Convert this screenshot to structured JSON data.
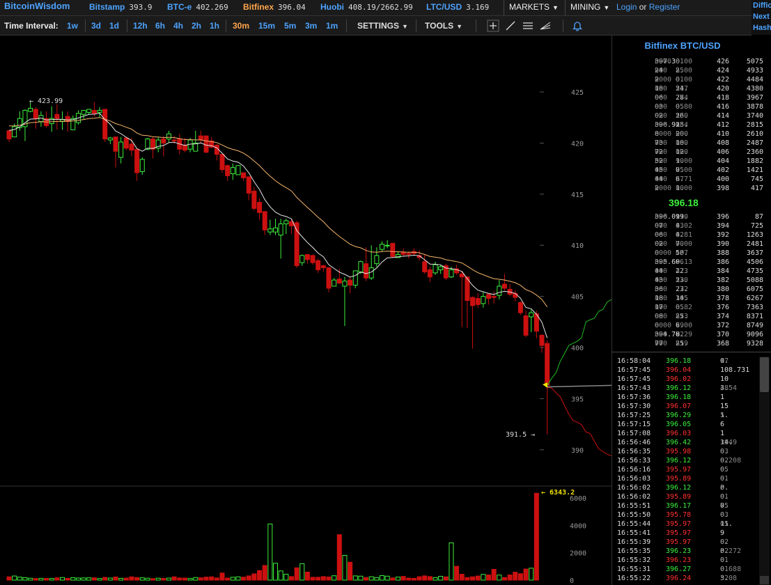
{
  "brand": "BitcoinWisdom",
  "markets": [
    {
      "name": "Bitstamp",
      "price": "393.9",
      "active": false
    },
    {
      "name": "BTC-e",
      "price": "402.269",
      "active": false
    },
    {
      "name": "Bitfinex",
      "price": "396.04",
      "active": true
    },
    {
      "name": "Huobi",
      "price": "408.19/2662.99",
      "active": false
    },
    {
      "name": "LTC/USD",
      "price": "3.169",
      "active": false
    }
  ],
  "menus": {
    "markets": "MARKETS",
    "mining": "MINING"
  },
  "auth": {
    "login": "Login",
    "or": "or",
    "register": "Register"
  },
  "right_links": [
    "Diffic",
    "Next",
    "Hash"
  ],
  "toolbar": {
    "time_interval_label": "Time Interval:",
    "intervals_long": [
      "1w",
      "3d",
      "1d"
    ],
    "intervals_hour": [
      "12h",
      "6h",
      "4h",
      "2h",
      "1h"
    ],
    "intervals_min": [
      "30m",
      "15m",
      "5m",
      "3m",
      "1m"
    ],
    "active_interval": "30m",
    "settings": "SETTINGS",
    "tools": "TOOLS"
  },
  "icons": [
    "crosshair-icon",
    "line-tool-icon",
    "horizontal-lines-icon",
    "fib-tool-icon",
    "bell-icon"
  ],
  "colors": {
    "up": "#3cf03c",
    "down": "#cc1010",
    "brand": "#4da3ff",
    "active": "#ffa64d"
  },
  "chart_data": {
    "type": "candlestick",
    "y_ticks": [
      "425",
      "420",
      "415",
      "410",
      "405",
      "400",
      "395",
      "390"
    ],
    "ylim": [
      388.5,
      429.5
    ],
    "high_label": "423.99",
    "low_label": "391.5",
    "volume_ticks": [
      "6000",
      "4000",
      "2000",
      "0"
    ],
    "volume_peak_label": "6343.2",
    "candles": [
      [
        421.2,
        420.4,
        421.3,
        420.1
      ],
      [
        420.6,
        421.6,
        421.9,
        420.6
      ],
      [
        421.5,
        422.4,
        423.1,
        421.2
      ],
      [
        421.6,
        423.2,
        423.3,
        420.2
      ],
      [
        423.1,
        423.4,
        424.0,
        423.0
      ],
      [
        423.3,
        422.4,
        423.5,
        421.4
      ],
      [
        422.1,
        422.7,
        423.1,
        421.6
      ],
      [
        422.4,
        421.7,
        423.1,
        421.5
      ],
      [
        421.9,
        422.4,
        423.6,
        421.1
      ],
      [
        422.8,
        422.4,
        423.8,
        421.3
      ],
      [
        422.1,
        422.3,
        423.1,
        421.3
      ],
      [
        422.6,
        422.1,
        423.1,
        421.1
      ],
      [
        421.3,
        422.4,
        422.7,
        421.4
      ],
      [
        422.0,
        422.9,
        423.2,
        421.8
      ],
      [
        422.8,
        423.2,
        423.2,
        422.3
      ],
      [
        423.0,
        423.3,
        423.3,
        422.8
      ],
      [
        423.2,
        422.9,
        424.0,
        422.6
      ],
      [
        423.0,
        423.2,
        423.5,
        422.5
      ],
      [
        423.3,
        420.4,
        423.3,
        420.1
      ],
      [
        420.3,
        420.5,
        420.6,
        419.9
      ],
      [
        420.6,
        419.2,
        420.6,
        417.6
      ],
      [
        418.6,
        420.1,
        420.6,
        418.0
      ],
      [
        420.5,
        419.5,
        420.5,
        419.3
      ],
      [
        419.9,
        419.3,
        420.5,
        418.7
      ],
      [
        419.4,
        417.1,
        419.4,
        416.3
      ],
      [
        417.2,
        418.4,
        418.6,
        416.9
      ],
      [
        419.4,
        420.4,
        420.5,
        419.3
      ],
      [
        420.4,
        419.4,
        420.6,
        418.5
      ],
      [
        419.5,
        420.3,
        420.6,
        419.1
      ],
      [
        420.4,
        420.0,
        420.7,
        418.7
      ],
      [
        420.4,
        420.9,
        421.2,
        420.1
      ],
      [
        420.3,
        420.2,
        420.7,
        419.9
      ],
      [
        420.4,
        419.4,
        420.9,
        418.9
      ],
      [
        419.8,
        419.3,
        420.5,
        419.1
      ],
      [
        419.4,
        420.3,
        420.5,
        419.1
      ],
      [
        419.2,
        420.0,
        421.2,
        419.2
      ],
      [
        420.7,
        420.3,
        421.2,
        420.0
      ],
      [
        420.7,
        419.1,
        420.7,
        419.0
      ],
      [
        420.2,
        419.6,
        420.6,
        419.5
      ],
      [
        419.8,
        418.9,
        419.9,
        418.3
      ],
      [
        418.9,
        417.4,
        419.0,
        417.1
      ],
      [
        417.8,
        416.8,
        417.9,
        416.3
      ],
      [
        417.0,
        417.6,
        418.0,
        416.4
      ],
      [
        416.9,
        417.8,
        417.8,
        416.9
      ],
      [
        417.1,
        416.6,
        417.1,
        416.3
      ],
      [
        416.7,
        415.1,
        416.7,
        414.4
      ],
      [
        415.3,
        413.6,
        415.7,
        413.4
      ],
      [
        414.2,
        413.2,
        414.6,
        412.5
      ],
      [
        413.3,
        411.5,
        413.3,
        411.0
      ],
      [
        411.3,
        411.6,
        412.5,
        411.0
      ],
      [
        411.3,
        411.7,
        412.6,
        411.0
      ],
      [
        411.0,
        412.1,
        412.6,
        408.7
      ],
      [
        412.1,
        412.4,
        412.6,
        411.1
      ],
      [
        412.3,
        411.9,
        412.6,
        411.1
      ],
      [
        412.2,
        408.0,
        412.4,
        407.8
      ],
      [
        408.3,
        409.0,
        409.1,
        408.0
      ],
      [
        409.1,
        408.6,
        409.1,
        408.2
      ],
      [
        409.0,
        408.3,
        409.1,
        408.1
      ],
      [
        408.5,
        407.6,
        408.7,
        407.3
      ],
      [
        408.0,
        407.8,
        408.1,
        407.4
      ],
      [
        407.8,
        405.8,
        407.8,
        405.4
      ],
      [
        406.0,
        406.6,
        406.8,
        406.0
      ],
      [
        406.7,
        406.3,
        407.7,
        406.2
      ],
      [
        406.0,
        406.5,
        406.9,
        402.1
      ],
      [
        406.6,
        406.1,
        406.9,
        405.3
      ],
      [
        406.1,
        407.5,
        407.5,
        405.8
      ],
      [
        407.4,
        408.4,
        408.5,
        407.2
      ],
      [
        408.2,
        406.8,
        409.8,
        406.5
      ],
      [
        406.8,
        407.8,
        410.0,
        406.6
      ],
      [
        408.2,
        409.0,
        409.8,
        407.9
      ],
      [
        409.6,
        410.1,
        410.4,
        409.4
      ],
      [
        410.0,
        410.0,
        410.5,
        409.7
      ],
      [
        410.2,
        408.9,
        410.2,
        408.8
      ],
      [
        408.8,
        409.1,
        409.4,
        408.9
      ],
      [
        409.3,
        409.1,
        409.7,
        408.9
      ],
      [
        409.2,
        409.1,
        409.4,
        408.7
      ],
      [
        409.4,
        409.2,
        409.7,
        409.0
      ],
      [
        409.0,
        408.8,
        409.5,
        408.5
      ],
      [
        408.4,
        407.4,
        409.1,
        407.2
      ],
      [
        407.6,
        406.9,
        407.9,
        406.4
      ],
      [
        407.3,
        408.1,
        408.4,
        407.1
      ],
      [
        407.6,
        407.9,
        408.1,
        407.2
      ],
      [
        408.0,
        406.8,
        408.2,
        406.6
      ],
      [
        406.9,
        407.6,
        407.9,
        406.8
      ],
      [
        407.7,
        407.3,
        408.1,
        407.1
      ],
      [
        407.2,
        406.9,
        407.5,
        402.0
      ],
      [
        406.9,
        404.6,
        407.0,
        401.9
      ],
      [
        404.9,
        404.1,
        405.0,
        399.9
      ],
      [
        404.8,
        404.2,
        405.3,
        403.9
      ],
      [
        404.3,
        405.0,
        405.4,
        403.9
      ],
      [
        405.2,
        404.8,
        405.3,
        404.2
      ],
      [
        405.0,
        404.9,
        405.5,
        404.3
      ],
      [
        405.1,
        406.0,
        406.6,
        404.7
      ],
      [
        406.2,
        405.8,
        407.2,
        405.6
      ],
      [
        405.7,
        405.2,
        406.2,
        405.0
      ],
      [
        405.3,
        404.9,
        405.6,
        404.5
      ],
      [
        404.4,
        403.4,
        404.5,
        403.2
      ],
      [
        403.1,
        401.2,
        403.6,
        401.0
      ],
      [
        403.0,
        403.4,
        403.7,
        401.5
      ],
      [
        403.3,
        401.6,
        403.6,
        400.9
      ],
      [
        401.2,
        400.2,
        401.3,
        399.5
      ],
      [
        400.4,
        396.3,
        400.7,
        391.5
      ]
    ],
    "volumes": [
      240,
      300,
      220,
      180,
      140,
      120,
      130,
      130,
      120,
      170,
      190,
      130,
      180,
      150,
      160,
      170,
      170,
      120,
      200,
      150,
      230,
      130,
      150,
      240,
      190,
      170,
      140,
      110,
      140,
      130,
      150,
      240,
      160,
      150,
      120,
      190,
      170,
      220,
      240,
      160,
      520,
      150,
      210,
      240,
      220,
      310,
      460,
      700,
      1070,
      4100,
      1230,
      670,
      430,
      260,
      900,
      1200,
      590,
      210,
      210,
      260,
      230,
      320,
      3320,
      1810,
      1310,
      310,
      290,
      190,
      250,
      190,
      330,
      290,
      160,
      220,
      270,
      150,
      130,
      250,
      310,
      260,
      180,
      280,
      240,
      2720,
      1010,
      430,
      190,
      240,
      300,
      420,
      380,
      790,
      370,
      190,
      380,
      580,
      470,
      810,
      870,
      6343
    ]
  },
  "order_book": {
    "title": "Bitfinex BTC/USD",
    "asks": [
      {
        "hi": "397.3",
        "lo": "0000",
        "amt_hi": "0.",
        "amt_lo": "0100",
        "level": "426",
        "sum": "5075"
      },
      {
        "hi": "24",
        "lo": "000",
        "amt_hi": "2.",
        "amt_lo": "8500",
        "level": "424",
        "sum": "4933"
      },
      {
        "hi": "2",
        "lo": "0000",
        "amt_hi": "0.",
        "amt_lo": "0100",
        "level": "422",
        "sum": "4484"
      },
      {
        "hi": "18",
        "lo": "000",
        "amt_hi": "24.",
        "amt_lo": "517",
        "level": "420",
        "sum": "4380"
      },
      {
        "hi": "06",
        "lo": "000",
        "amt_hi": "28.",
        "amt_lo": "774",
        "level": "418",
        "sum": "3967"
      },
      {
        "hi": "03",
        "lo": "000",
        "amt_hi": "0.",
        "amt_lo": "0580",
        "level": "416",
        "sum": "3878"
      },
      {
        "hi": "02",
        "lo": "000",
        "amt_hi": "26.",
        "amt_lo": "530",
        "level": "414",
        "sum": "3740"
      },
      {
        "hi": "396.91",
        "lo": "000",
        "amt_hi": "25.",
        "amt_lo": "084",
        "level": "412",
        "sum": "2815"
      },
      {
        "hi": "8",
        "lo": "0000",
        "amt_hi": "20.",
        "amt_lo": "000",
        "level": "410",
        "sum": "2610"
      },
      {
        "hi": "73",
        "lo": "000",
        "amt_hi": "18.",
        "amt_lo": "000",
        "level": "408",
        "sum": "2487"
      },
      {
        "hi": "72",
        "lo": "000",
        "amt_hi": "12.",
        "amt_lo": "000",
        "level": "406",
        "sum": "2360"
      },
      {
        "hi": "52",
        "lo": "000",
        "amt_hi": "1.",
        "amt_lo": "9000",
        "level": "404",
        "sum": "1882"
      },
      {
        "hi": "45",
        "lo": "000",
        "amt_hi": "0.",
        "amt_lo": "7500",
        "level": "402",
        "sum": "1421"
      },
      {
        "hi": "44",
        "lo": "000",
        "amt_hi": "6.",
        "amt_lo": "2771",
        "level": "400",
        "sum": "745"
      },
      {
        "hi": "2",
        "lo": "0000",
        "amt_hi": "1.",
        "amt_lo": "0000",
        "level": "398",
        "sum": "417"
      }
    ],
    "last_price": "396.18",
    "bids": [
      {
        "hi": "396.09",
        "lo": "000",
        "amt_hi": "19.",
        "amt_lo": "210",
        "level": "396",
        "sum": "87"
      },
      {
        "hi": "07",
        "lo": "000",
        "amt_hi": "4.",
        "amt_lo": "9302",
        "level": "394",
        "sum": "725"
      },
      {
        "hi": "06",
        "lo": "000",
        "amt_hi": "4.",
        "amt_lo": "9281",
        "level": "392",
        "sum": "1263"
      },
      {
        "hi": "02",
        "lo": "000",
        "amt_hi": "7.",
        "amt_lo": "0000",
        "level": "390",
        "sum": "2481"
      },
      {
        "hi": "0",
        "lo": "0000",
        "amt_hi": "50.",
        "amt_lo": "457",
        "level": "388",
        "sum": "3637"
      },
      {
        "hi": "395.69",
        "lo": "000",
        "amt_hi": "0.",
        "amt_lo": "3613",
        "level": "386",
        "sum": "4506"
      },
      {
        "hi": "44",
        "lo": "000",
        "amt_hi": "22.",
        "amt_lo": "473",
        "level": "384",
        "sum": "4735"
      },
      {
        "hi": "43",
        "lo": "000",
        "amt_hi": "23.",
        "amt_lo": "520",
        "level": "382",
        "sum": "5088"
      },
      {
        "hi": "36",
        "lo": "000",
        "amt_hi": "23.",
        "amt_lo": "772",
        "level": "380",
        "sum": "6075"
      },
      {
        "hi": "18",
        "lo": "000",
        "amt_hi": "14.",
        "amt_lo": "305",
        "level": "378",
        "sum": "6267"
      },
      {
        "hi": "17",
        "lo": "000",
        "amt_hi": "0.",
        "amt_lo": "0582",
        "level": "376",
        "sum": "7363"
      },
      {
        "hi": "08",
        "lo": "000",
        "amt_hi": "25.",
        "amt_lo": "873",
        "level": "374",
        "sum": "8371"
      },
      {
        "hi": "0",
        "lo": "0000",
        "amt_hi": "6.",
        "amt_lo": "7900",
        "level": "372",
        "sum": "8749"
      },
      {
        "hi": "394.78",
        "lo": "000",
        "amt_hi": "0.",
        "amt_lo": "7229",
        "level": "370",
        "sum": "9096"
      },
      {
        "hi": "77",
        "lo": "000",
        "amt_hi": "25.",
        "amt_lo": "819",
        "level": "368",
        "sum": "9328"
      }
    ]
  },
  "trades": [
    {
      "time": "16:58:04",
      "price": "396.18",
      "dir": "up",
      "amt_hi": "0.",
      "amt_lo": "17"
    },
    {
      "time": "16:57:45",
      "price": "396.04",
      "dir": "down",
      "amt_hi": "108.731",
      "amt_lo": ""
    },
    {
      "time": "16:57:45",
      "price": "396.02",
      "dir": "down",
      "amt_hi": "10",
      "amt_lo": ""
    },
    {
      "time": "16:57:43",
      "price": "396.12",
      "dir": "up",
      "amt_hi": "3.",
      "amt_lo": "4854"
    },
    {
      "time": "16:57:36",
      "price": "396.18",
      "dir": "up",
      "amt_hi": "1",
      "amt_lo": ""
    },
    {
      "time": "16:57:30",
      "price": "396.07",
      "dir": "down",
      "amt_hi": "15",
      "amt_lo": ""
    },
    {
      "time": "16:57:25",
      "price": "396.29",
      "dir": "up",
      "amt_hi": "1.",
      "amt_lo": "5"
    },
    {
      "time": "16:57:15",
      "price": "396.05",
      "dir": "up",
      "amt_hi": "6",
      "amt_lo": ""
    },
    {
      "time": "16:57:08",
      "price": "396.03",
      "dir": "down",
      "amt_hi": "1",
      "amt_lo": ""
    },
    {
      "time": "16:56:46",
      "price": "396.42",
      "dir": "up",
      "amt_hi": "14.",
      "amt_lo": "3949"
    },
    {
      "time": "16:56:35",
      "price": "395.98",
      "dir": "down",
      "amt_hi": "0.",
      "amt_lo": "03"
    },
    {
      "time": "16:56:33",
      "price": "396.12",
      "dir": "up",
      "amt_hi": "0.",
      "amt_lo": "02208"
    },
    {
      "time": "16:56:16",
      "price": "395.97",
      "dir": "down",
      "amt_hi": "0.",
      "amt_lo": "05"
    },
    {
      "time": "16:56:03",
      "price": "395.89",
      "dir": "down",
      "amt_hi": "0.",
      "amt_lo": "01"
    },
    {
      "time": "16:56:02",
      "price": "396.12",
      "dir": "up",
      "amt_hi": "0.",
      "amt_lo": "5"
    },
    {
      "time": "16:56:02",
      "price": "395.89",
      "dir": "down",
      "amt_hi": "0.",
      "amt_lo": "01"
    },
    {
      "time": "16:55:51",
      "price": "396.17",
      "dir": "up",
      "amt_hi": "0.",
      "amt_lo": "75"
    },
    {
      "time": "16:55:50",
      "price": "395.78",
      "dir": "down",
      "amt_hi": "0.",
      "amt_lo": "03"
    },
    {
      "time": "16:55:44",
      "price": "395.97",
      "dir": "down",
      "amt_hi": "11.",
      "amt_lo": "05"
    },
    {
      "time": "16:55:41",
      "price": "395.97",
      "dir": "down",
      "amt_hi": "9",
      "amt_lo": ""
    },
    {
      "time": "16:55:39",
      "price": "395.97",
      "dir": "down",
      "amt_hi": "0.",
      "amt_lo": "02"
    },
    {
      "time": "16:55:35",
      "price": "396.23",
      "dir": "up",
      "amt_hi": "0.",
      "amt_lo": "52272"
    },
    {
      "time": "16:55:32",
      "price": "396.23",
      "dir": "down",
      "amt_hi": "0.",
      "amt_lo": "01"
    },
    {
      "time": "16:55:31",
      "price": "396.27",
      "dir": "up",
      "amt_hi": "0.",
      "amt_lo": "01688"
    },
    {
      "time": "16:55:22",
      "price": "396.24",
      "dir": "down",
      "amt_hi": "3.",
      "amt_lo": "5208"
    }
  ]
}
